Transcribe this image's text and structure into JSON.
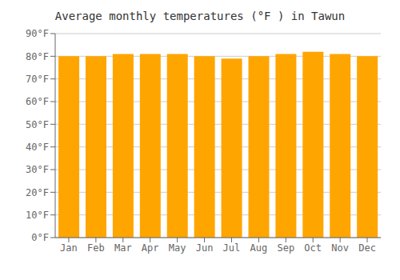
{
  "chart_data": {
    "type": "bar",
    "title": "Average monthly temperatures (°F ) in Tawun",
    "categories": [
      "Jan",
      "Feb",
      "Mar",
      "Apr",
      "May",
      "Jun",
      "Jul",
      "Aug",
      "Sep",
      "Oct",
      "Nov",
      "Dec"
    ],
    "values": [
      80,
      80,
      81,
      81,
      81,
      80,
      79,
      80,
      81,
      82,
      81,
      80
    ],
    "color": "#FFA500",
    "ylim": [
      0,
      90
    ],
    "yticks": [
      {
        "value": 0,
        "label": "0°F"
      },
      {
        "value": 10,
        "label": "10°F"
      },
      {
        "value": 20,
        "label": "20°F"
      },
      {
        "value": 30,
        "label": "30°F"
      },
      {
        "value": 40,
        "label": "40°F"
      },
      {
        "value": 50,
        "label": "50°F"
      },
      {
        "value": 60,
        "label": "60°F"
      },
      {
        "value": 70,
        "label": "70°F"
      },
      {
        "value": 80,
        "label": "80°F"
      },
      {
        "value": 90,
        "label": "90°F"
      }
    ],
    "grid": true
  }
}
